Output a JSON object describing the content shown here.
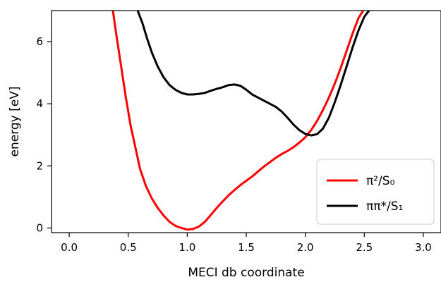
{
  "chart_data": {
    "type": "line",
    "title": "",
    "xlabel": "MECI  db coordinate",
    "ylabel": "energy [eV]",
    "xlim": [
      -0.15,
      3.15
    ],
    "ylim": [
      -0.15,
      7.0
    ],
    "x_ticks": [
      0.0,
      0.5,
      1.0,
      1.5,
      2.0,
      2.5,
      3.0
    ],
    "x_tick_labels": [
      "0.0",
      "0.5",
      "1.0",
      "1.5",
      "2.0",
      "2.5",
      "3.0"
    ],
    "y_ticks": [
      0,
      2,
      4,
      6
    ],
    "y_tick_labels": [
      "0",
      "2",
      "4",
      "6"
    ],
    "grid": false,
    "legend_position": "lower-right",
    "series": [
      {
        "name": "π²/S₀",
        "color": "#ff0000",
        "x": [
          0.37,
          0.4,
          0.44,
          0.48,
          0.52,
          0.56,
          0.6,
          0.65,
          0.7,
          0.75,
          0.8,
          0.85,
          0.9,
          0.95,
          1.0,
          1.05,
          1.1,
          1.15,
          1.2,
          1.25,
          1.3,
          1.35,
          1.4,
          1.45,
          1.5,
          1.55,
          1.6,
          1.65,
          1.7,
          1.75,
          1.8,
          1.85,
          1.9,
          1.95,
          2.0,
          2.05,
          2.1,
          2.15,
          2.2,
          2.25,
          2.3,
          2.35,
          2.4,
          2.45,
          2.49
        ],
        "y": [
          7.0,
          6.2,
          5.2,
          4.2,
          3.3,
          2.6,
          1.9,
          1.35,
          0.95,
          0.65,
          0.4,
          0.2,
          0.07,
          0.0,
          -0.05,
          -0.03,
          0.05,
          0.2,
          0.42,
          0.65,
          0.85,
          1.05,
          1.22,
          1.38,
          1.52,
          1.66,
          1.82,
          1.98,
          2.12,
          2.26,
          2.38,
          2.48,
          2.6,
          2.75,
          2.92,
          3.15,
          3.45,
          3.8,
          4.2,
          4.65,
          5.15,
          5.7,
          6.25,
          6.75,
          7.0
        ]
      },
      {
        "name": "ππ*/S₁",
        "color": "#000000",
        "x": [
          0.58,
          0.62,
          0.66,
          0.7,
          0.75,
          0.8,
          0.85,
          0.9,
          0.95,
          1.0,
          1.05,
          1.1,
          1.15,
          1.2,
          1.25,
          1.3,
          1.35,
          1.4,
          1.45,
          1.5,
          1.55,
          1.6,
          1.65,
          1.7,
          1.75,
          1.8,
          1.85,
          1.9,
          1.95,
          2.0,
          2.05,
          2.1,
          2.15,
          2.2,
          2.25,
          2.3,
          2.35,
          2.4,
          2.45,
          2.5,
          2.54
        ],
        "y": [
          7.0,
          6.6,
          6.1,
          5.65,
          5.2,
          4.85,
          4.6,
          4.45,
          4.35,
          4.3,
          4.3,
          4.32,
          4.35,
          4.42,
          4.48,
          4.53,
          4.6,
          4.62,
          4.58,
          4.45,
          4.3,
          4.2,
          4.1,
          4.0,
          3.9,
          3.75,
          3.55,
          3.33,
          3.15,
          3.03,
          2.98,
          3.02,
          3.2,
          3.55,
          4.05,
          4.6,
          5.2,
          5.8,
          6.35,
          6.8,
          7.0
        ]
      }
    ]
  }
}
